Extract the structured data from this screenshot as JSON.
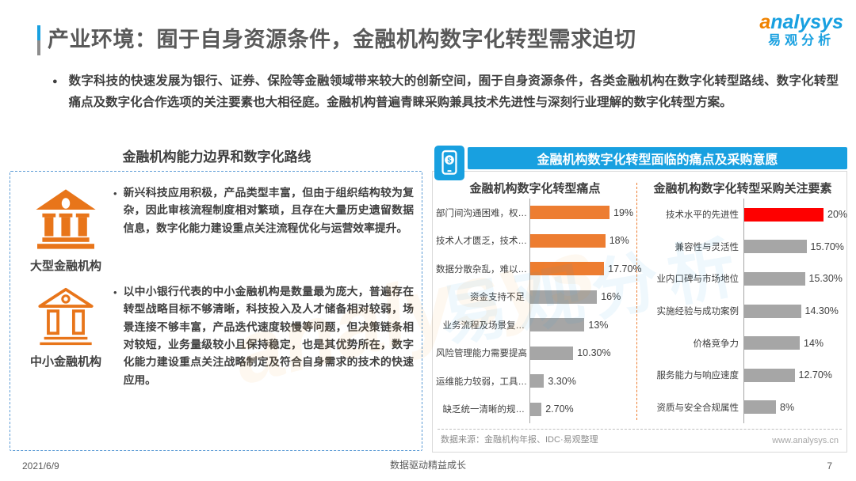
{
  "page": {
    "title": "产业环境：囿于自身资源条件，金融机构数字化转型需求迫切",
    "intro": "数字科技的快速发展为银行、证券、保险等金融领域带来较大的创新空间，囿于自身资源条件，各类金融机构在数字化转型路线、数字化转型痛点及数字化合作选项的关注要素也大相径庭。金融机构普遍青睐采购兼具技术先进性与深刻行业理解的数字化转型方案。",
    "footer": {
      "date": "2021/6/9",
      "slogan": "数据驱动精益成长",
      "page_number": "7"
    }
  },
  "glyphs": {
    "intro_bullet": "●",
    "item_bullet": "•"
  },
  "logo": {
    "brand_first": "a",
    "brand_rest": "nalysys",
    "brand_cn": "易观分析",
    "blue": "#18A0E0",
    "orange": "#F08300"
  },
  "watermark": {
    "text_en": "analysys",
    "text_cn": "易观分析"
  },
  "left_panel": {
    "title": "金融机构能力边界和数字化路线",
    "items": [
      {
        "icon": "bank-filled-icon",
        "label": "大型金融机构",
        "text": "新兴科技应用积极，产品类型丰富，但由于组织结构较为复杂，因此审核流程制度相对繁琐，且存在大量历史遗留数据信息，数字化能力建设重点关注流程优化与运营效率提升。"
      },
      {
        "icon": "bank-outline-icon",
        "label": "中小金融机构",
        "text": "以中小银行代表的中小金融机构是数量最为庞大，普遍存在转型战略目标不够清晰，科技投入及人才储备相对较弱，场景连接不够丰富，产品迭代速度较慢等问题，但决策链条相对较短，业务量级较小且保持稳定，也是其优势所在，数字化能力建设重点关注战略制定及符合自身需求的技术的快速应用。"
      }
    ]
  },
  "right_panel": {
    "header": "金融机构数字化转型面临的痛点及采购意愿",
    "source": "数据来源：金融机构年报、IDC·易观整理",
    "website": "www.analysys.cn"
  },
  "chart_data": [
    {
      "type": "bar",
      "orientation": "horizontal",
      "title": "金融机构数字化转型痛点",
      "categories": [
        "部门间沟通困难，权…",
        "技术人才匮乏，技术…",
        "数据分散杂乱，难以…",
        "资金支持不足",
        "业务流程及场景复…",
        "风险管理能力需要提高",
        "运维能力较弱，工具…",
        "缺乏统一清晰的规…"
      ],
      "values": [
        19,
        18,
        17.7,
        16,
        13,
        10.3,
        3.3,
        2.7
      ],
      "value_labels": [
        "19%",
        "18%",
        "17.70%",
        "16%",
        "13%",
        "10.30%",
        "3.30%",
        "2.70%"
      ],
      "bar_colors": [
        "#ED7D31",
        "#ED7D31",
        "#ED7D31",
        "#A6A6A6",
        "#A6A6A6",
        "#A6A6A6",
        "#A6A6A6",
        "#A6A6A6"
      ],
      "xlim": [
        0,
        20
      ],
      "grid": false,
      "legend": "none"
    },
    {
      "type": "bar",
      "orientation": "horizontal",
      "title": "金融机构数字化转型采购关注要素",
      "categories": [
        "技术水平的先进性",
        "兼容性与灵活性",
        "业内口碑与市场地位",
        "实施经验与成功案例",
        "价格竞争力",
        "服务能力与响应速度",
        "资质与安全合规属性"
      ],
      "values": [
        20,
        15.7,
        15.3,
        14.3,
        14,
        12.7,
        8
      ],
      "value_labels": [
        "20%",
        "15.70%",
        "15.30%",
        "14.30%",
        "14%",
        "12.70%",
        "8%"
      ],
      "bar_colors": [
        "#FE0000",
        "#A6A6A6",
        "#A6A6A6",
        "#A6A6A6",
        "#A6A6A6",
        "#A6A6A6",
        "#A6A6A6"
      ],
      "xlim": [
        0,
        21
      ],
      "grid": false,
      "legend": "none"
    }
  ]
}
